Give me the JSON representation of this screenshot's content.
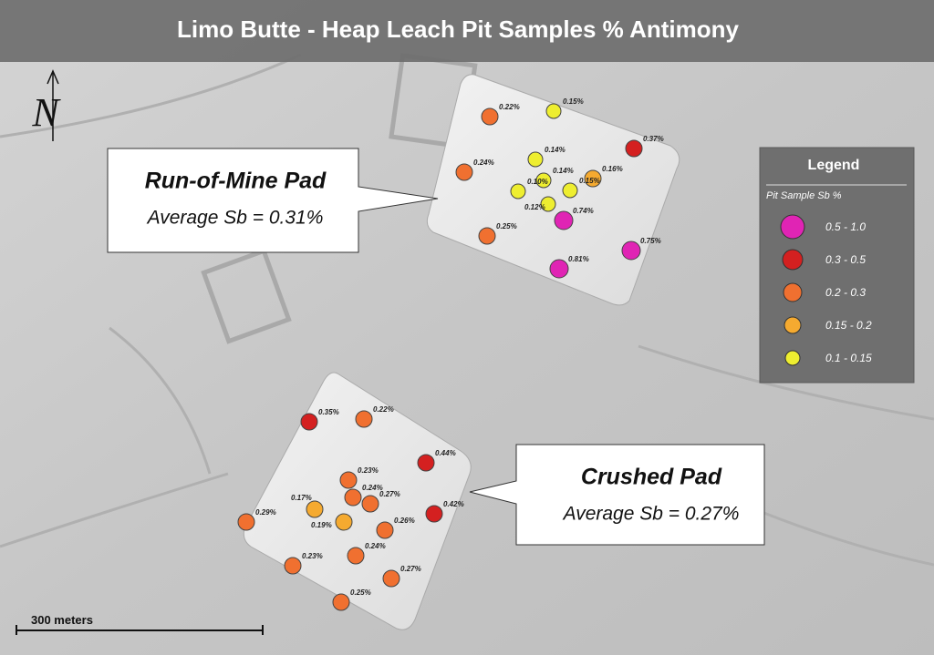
{
  "title": "Limo Butte - Heap Leach Pit Samples % Antimony",
  "north": "N",
  "callouts": [
    {
      "title": "Run-of-Mine Pad",
      "subtitle": "Average Sb = 0.31%"
    },
    {
      "title": "Crushed Pad",
      "subtitle": "Average Sb = 0.27%"
    }
  ],
  "legend": {
    "title": "Legend",
    "subtitle": "Pit Sample Sb %",
    "classes": [
      {
        "label": "0.5 - 1.0",
        "color": "#e024b4"
      },
      {
        "label": "0.3 - 0.5",
        "color": "#d42020"
      },
      {
        "label": "0.2 - 0.3",
        "color": "#f07030"
      },
      {
        "label": "0.15 - 0.2",
        "color": "#f5aa30"
      },
      {
        "label": "0.1 - 0.15",
        "color": "#eeee30"
      }
    ]
  },
  "samples": [
    {
      "label": "0.22%"
    },
    {
      "label": "0.15%"
    },
    {
      "label": "0.37%"
    },
    {
      "label": "0.14%"
    },
    {
      "label": "0.24%"
    },
    {
      "label": "0.14%"
    },
    {
      "label": "0.16%"
    },
    {
      "label": "0.10%"
    },
    {
      "label": "0.15%"
    },
    {
      "label": "0.12%"
    },
    {
      "label": "0.74%"
    },
    {
      "label": "0.25%"
    },
    {
      "label": "0.75%"
    },
    {
      "label": "0.81%"
    },
    {
      "label": "0.35%"
    },
    {
      "label": "0.22%"
    },
    {
      "label": "0.44%"
    },
    {
      "label": "0.23%"
    },
    {
      "label": "0.24%"
    },
    {
      "label": "0.17%"
    },
    {
      "label": "0.27%"
    },
    {
      "label": "0.42%"
    },
    {
      "label": "0.29%"
    },
    {
      "label": "0.19%"
    },
    {
      "label": "0.26%"
    },
    {
      "label": "0.24%"
    },
    {
      "label": "0.23%"
    },
    {
      "label": "0.27%"
    },
    {
      "label": "0.25%"
    }
  ],
  "scale_bar": "300 meters"
}
